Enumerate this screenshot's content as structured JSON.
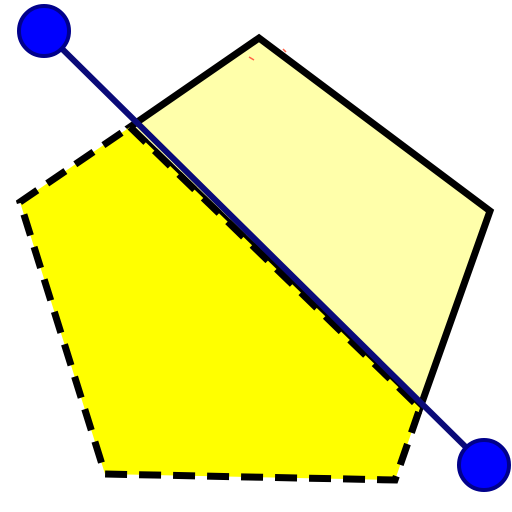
{
  "diagram": {
    "description_type": "polygon-cut",
    "colors": {
      "background": "#ffffff",
      "light_region_fill": "#ffffaa",
      "dark_region_fill": "#ffff00",
      "outline": "#000000",
      "cut_line": "#0a0a78",
      "handle_fill": "#0000ff",
      "handle_stroke": "#00008b",
      "small_mark": "#ff6347"
    },
    "handles": [
      {
        "name": "cut-start-handle"
      },
      {
        "name": "cut-end-handle"
      }
    ],
    "regions": [
      {
        "name": "light-region",
        "style": "solid-outline"
      },
      {
        "name": "dark-region",
        "style": "dashed-outline"
      }
    ]
  }
}
